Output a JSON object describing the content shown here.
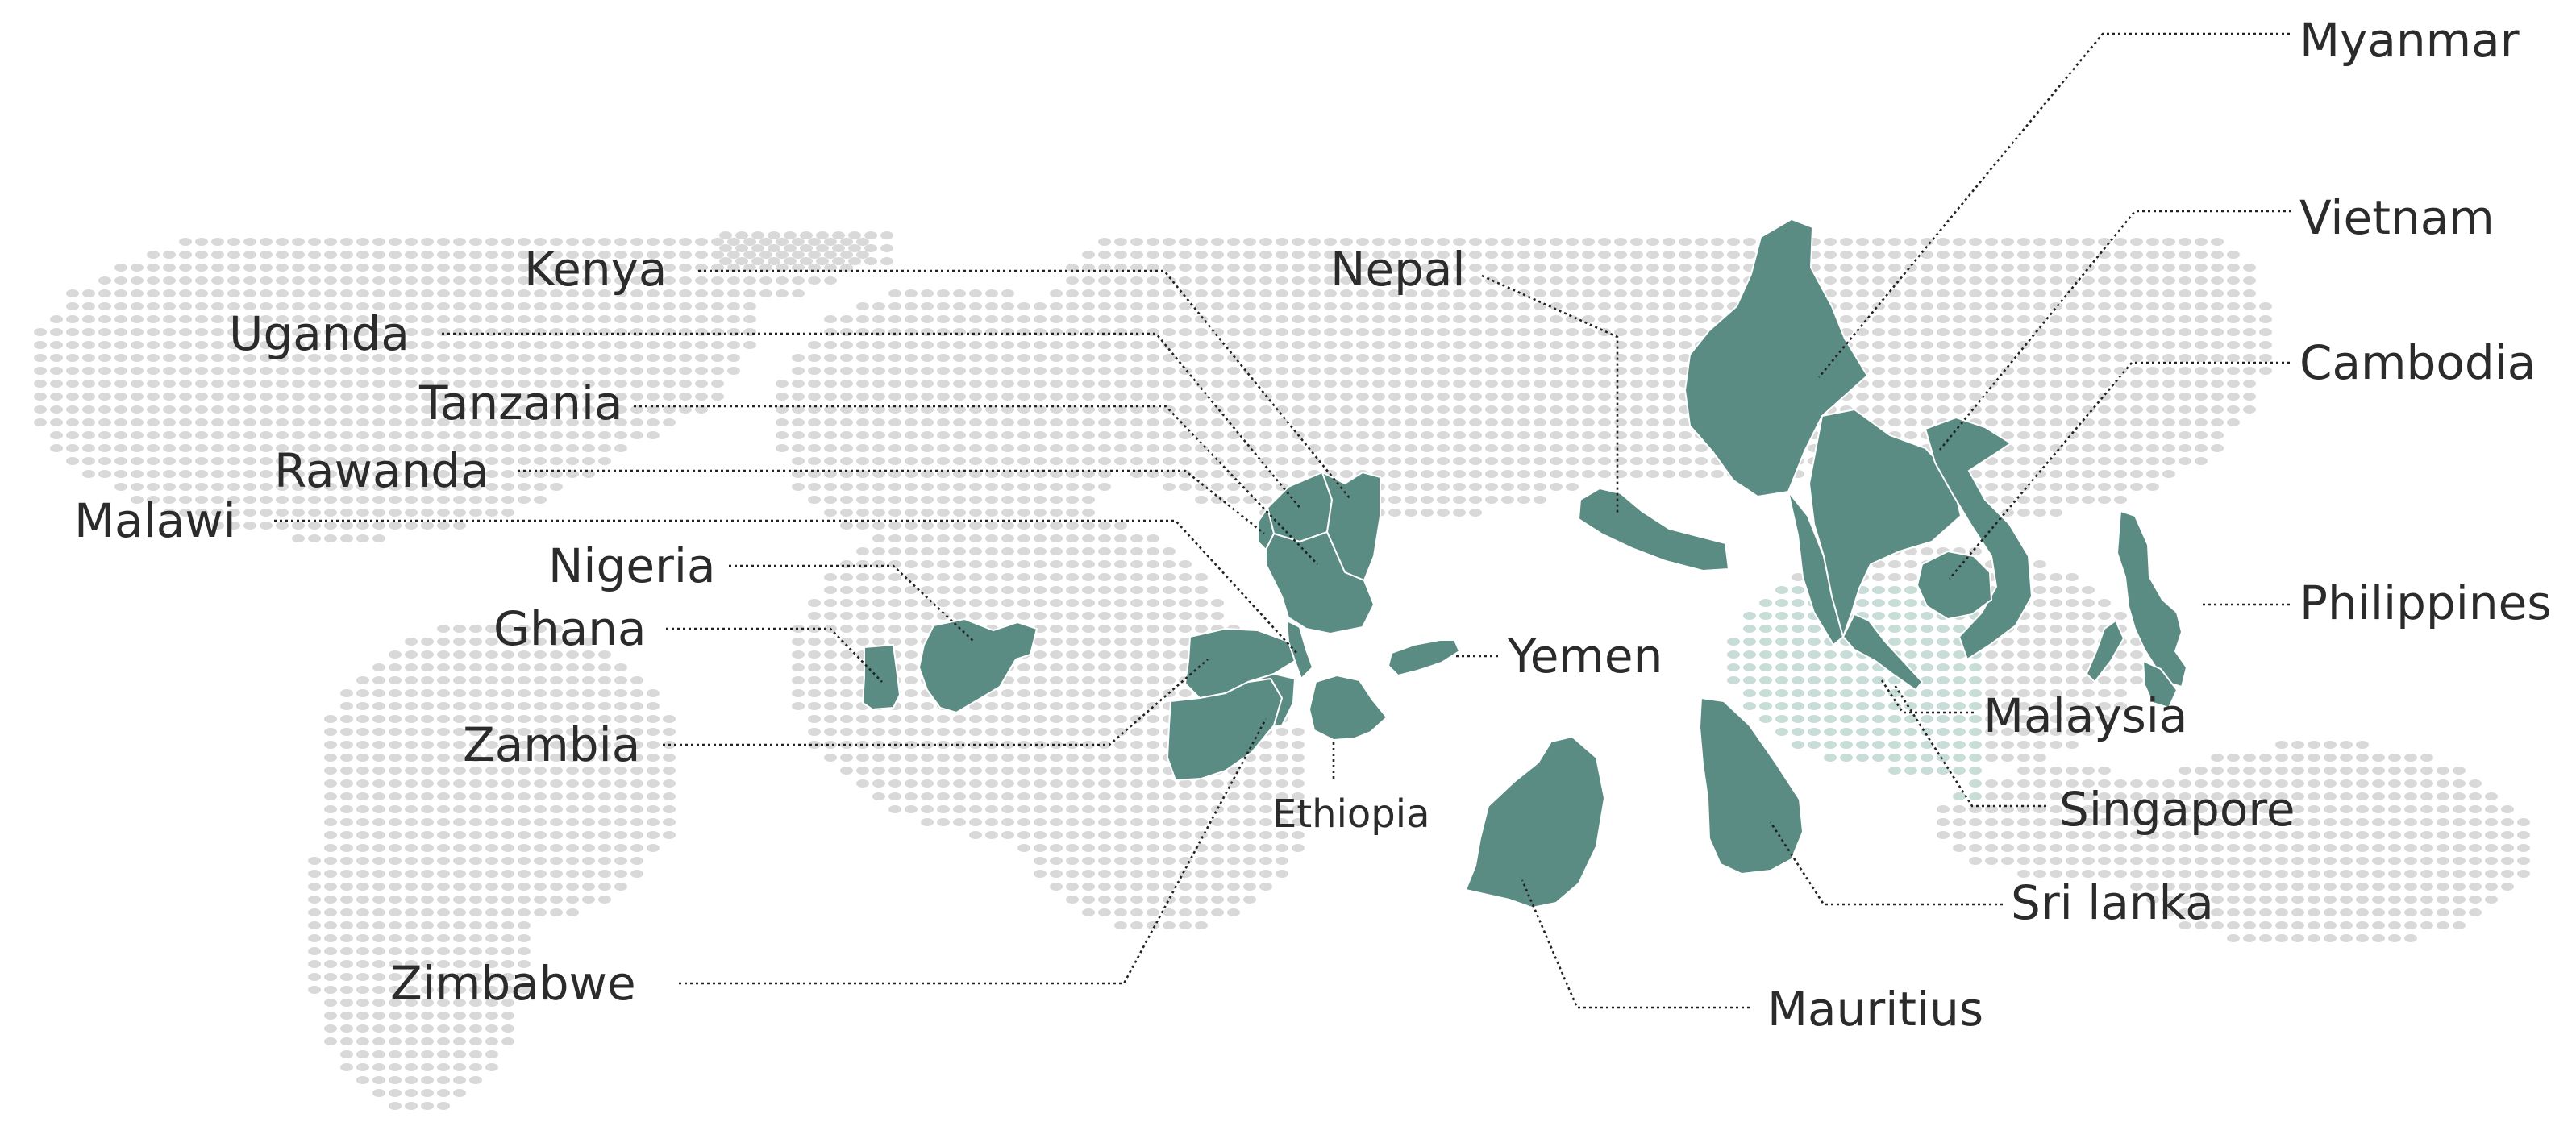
{
  "colors": {
    "highlight": "#5a8c83",
    "dots": "#d9d9d9",
    "accent_dots": "#c9ddd8",
    "label": "#2b2b2b"
  },
  "countries": {
    "myanmar": "Myanmar",
    "vietnam": "Vietnam",
    "cambodia": "Cambodia",
    "philippines": "Philippines",
    "malaysia": "Malaysia",
    "singapore": "Singapore",
    "sri_lanka": "Sri lanka",
    "mauritius": "Mauritius",
    "yemen": "Yemen",
    "ethiopia": "Ethiopia",
    "nepal": "Nepal",
    "kenya": "Kenya",
    "uganda": "Uganda",
    "tanzania": "Tanzania",
    "rawanda": "Rawanda",
    "malawi": "Malawi",
    "nigeria": "Nigeria",
    "ghana": "Ghana",
    "zambia": "Zambia",
    "zimbabwe": "Zimbabwe"
  }
}
